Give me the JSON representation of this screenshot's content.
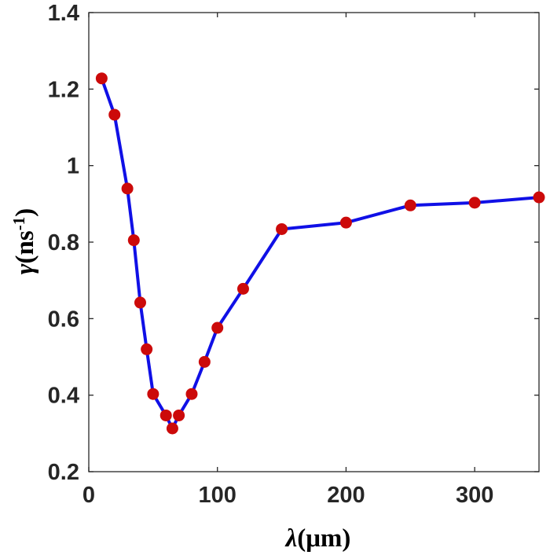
{
  "chart_data": {
    "type": "line",
    "title": "",
    "xlabel": {
      "symbol": "λ",
      "unit": "(μm)"
    },
    "ylabel": {
      "symbol": "γ",
      "unit_pre": "(ns",
      "unit_sup": "-1",
      "unit_post": ")"
    },
    "xlim": [
      0,
      350
    ],
    "ylim": [
      0.2,
      1.4
    ],
    "xticks": [
      0,
      100,
      200,
      300
    ],
    "xtick_labels": [
      "0",
      "100",
      "200",
      "300"
    ],
    "yticks": [
      0.2,
      0.4,
      0.6,
      0.8,
      1.0,
      1.2,
      1.4
    ],
    "ytick_labels": [
      "0.2",
      "0.4",
      "0.6",
      "0.8",
      "1",
      "1.2",
      "1.4"
    ],
    "grid": false,
    "series": [
      {
        "line_color": "#1010e6",
        "marker_color": "#cc0a0a",
        "points": [
          [
            10,
            1.228
          ],
          [
            20,
            1.133
          ],
          [
            30,
            0.94
          ],
          [
            35,
            0.805
          ],
          [
            40,
            0.642
          ],
          [
            45,
            0.52
          ],
          [
            50,
            0.403
          ],
          [
            60,
            0.347
          ],
          [
            65,
            0.313
          ],
          [
            70,
            0.347
          ],
          [
            80,
            0.403
          ],
          [
            90,
            0.487
          ],
          [
            100,
            0.576
          ],
          [
            120,
            0.678
          ],
          [
            150,
            0.834
          ],
          [
            200,
            0.851
          ],
          [
            250,
            0.896
          ],
          [
            300,
            0.903
          ],
          [
            350,
            0.917
          ]
        ]
      }
    ]
  }
}
